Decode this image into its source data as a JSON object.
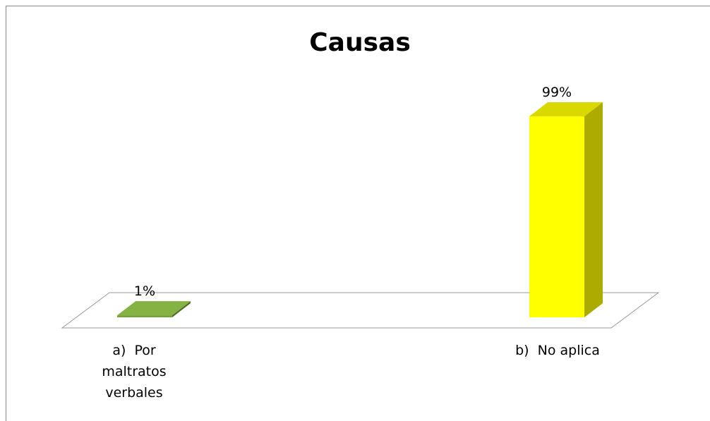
{
  "chart_data": {
    "type": "bar3d",
    "title": "Causas",
    "categories": [
      "a)  Por maltratos verbales",
      "b)  No aplica"
    ],
    "values": [
      1,
      99
    ],
    "value_labels": [
      "1%",
      "99%"
    ],
    "colors": [
      "#77a03c",
      "#ffff00"
    ]
  }
}
